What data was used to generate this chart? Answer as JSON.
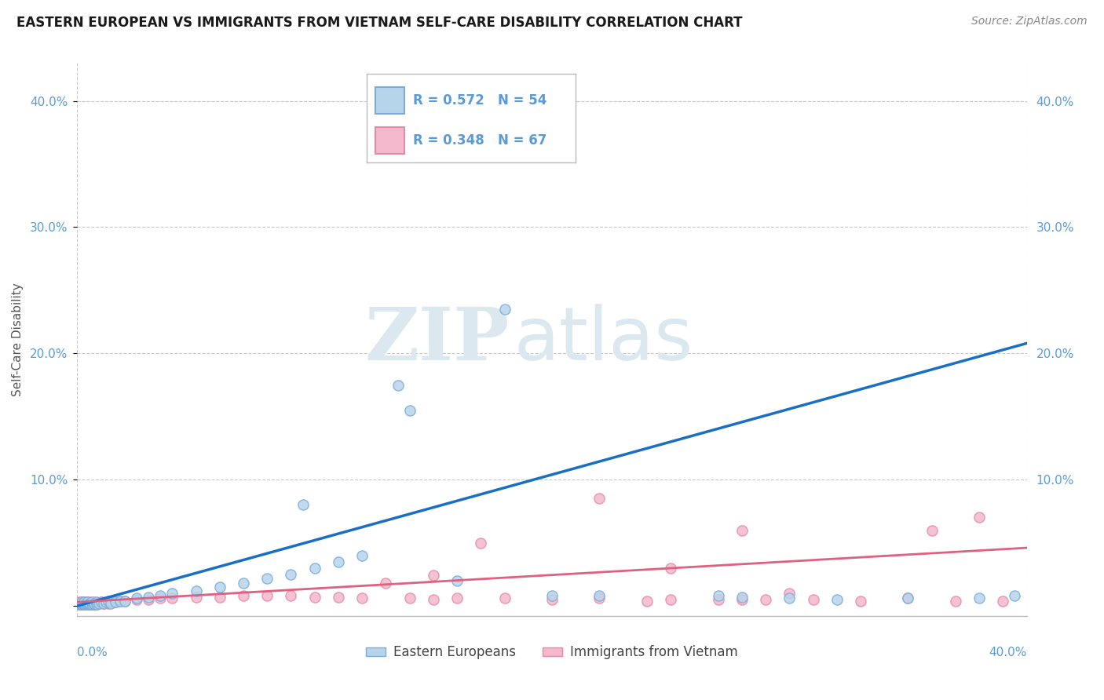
{
  "title": "EASTERN EUROPEAN VS IMMIGRANTS FROM VIETNAM SELF-CARE DISABILITY CORRELATION CHART",
  "source": "Source: ZipAtlas.com",
  "ylabel": "Self-Care Disability",
  "y_ticks": [
    0.0,
    0.1,
    0.2,
    0.3,
    0.4
  ],
  "y_tick_labels": [
    "",
    "10.0%",
    "20.0%",
    "30.0%",
    "40.0%"
  ],
  "xlim": [
    0.0,
    0.4
  ],
  "ylim": [
    -0.008,
    0.43
  ],
  "series1_label": "Eastern Europeans",
  "series2_label": "Immigrants from Vietnam",
  "series1_face": "#b8d4ea",
  "series2_face": "#f4b8cc",
  "series1_edge": "#7aabda",
  "series2_edge": "#e888a8",
  "series1_line": "#1a6fc4",
  "series2_line": "#e06080",
  "background_color": "#ffffff",
  "grid_color": "#c8c8c8",
  "title_color": "#1a1a1a",
  "source_color": "#888888",
  "tick_color": "#5b9bd5",
  "ylabel_color": "#555555",
  "trend1_x": [
    0.0,
    0.4
  ],
  "trend1_y": [
    0.0,
    0.208
  ],
  "trend2_x": [
    0.0,
    0.4
  ],
  "trend2_y": [
    0.003,
    0.046
  ],
  "s1_x": [
    0.001,
    0.001,
    0.002,
    0.002,
    0.002,
    0.003,
    0.003,
    0.003,
    0.004,
    0.004,
    0.004,
    0.005,
    0.005,
    0.006,
    0.006,
    0.007,
    0.007,
    0.008,
    0.008,
    0.009,
    0.01,
    0.011,
    0.012,
    0.013,
    0.014,
    0.016,
    0.018,
    0.02,
    0.025,
    0.03,
    0.035,
    0.04,
    0.05,
    0.06,
    0.07,
    0.08,
    0.09,
    0.1,
    0.11,
    0.12,
    0.14,
    0.16,
    0.18,
    0.2,
    0.22,
    0.27,
    0.28,
    0.3,
    0.32,
    0.35,
    0.38,
    0.395,
    0.135,
    0.095
  ],
  "s1_y": [
    0.001,
    0.002,
    0.001,
    0.002,
    0.003,
    0.001,
    0.002,
    0.003,
    0.001,
    0.002,
    0.003,
    0.001,
    0.002,
    0.001,
    0.003,
    0.001,
    0.002,
    0.001,
    0.003,
    0.002,
    0.003,
    0.002,
    0.003,
    0.004,
    0.002,
    0.003,
    0.004,
    0.004,
    0.006,
    0.007,
    0.008,
    0.01,
    0.012,
    0.015,
    0.018,
    0.022,
    0.025,
    0.03,
    0.035,
    0.04,
    0.155,
    0.02,
    0.235,
    0.008,
    0.008,
    0.008,
    0.007,
    0.006,
    0.005,
    0.006,
    0.006,
    0.008,
    0.175,
    0.08
  ],
  "s2_x": [
    0.001,
    0.001,
    0.001,
    0.002,
    0.002,
    0.002,
    0.003,
    0.003,
    0.003,
    0.004,
    0.004,
    0.004,
    0.005,
    0.005,
    0.005,
    0.006,
    0.006,
    0.007,
    0.007,
    0.008,
    0.008,
    0.009,
    0.01,
    0.011,
    0.012,
    0.013,
    0.014,
    0.016,
    0.018,
    0.02,
    0.025,
    0.03,
    0.035,
    0.04,
    0.05,
    0.06,
    0.07,
    0.08,
    0.09,
    0.1,
    0.11,
    0.12,
    0.14,
    0.16,
    0.18,
    0.2,
    0.22,
    0.25,
    0.27,
    0.29,
    0.31,
    0.33,
    0.35,
    0.37,
    0.39,
    0.15,
    0.13,
    0.28,
    0.24,
    0.3,
    0.36,
    0.38,
    0.22,
    0.17,
    0.15,
    0.28,
    0.25
  ],
  "s2_y": [
    0.001,
    0.002,
    0.003,
    0.001,
    0.002,
    0.003,
    0.001,
    0.002,
    0.003,
    0.001,
    0.002,
    0.003,
    0.001,
    0.002,
    0.003,
    0.001,
    0.002,
    0.001,
    0.003,
    0.001,
    0.002,
    0.002,
    0.003,
    0.002,
    0.003,
    0.002,
    0.003,
    0.003,
    0.004,
    0.004,
    0.005,
    0.005,
    0.006,
    0.006,
    0.007,
    0.007,
    0.008,
    0.008,
    0.008,
    0.007,
    0.007,
    0.006,
    0.006,
    0.006,
    0.006,
    0.005,
    0.006,
    0.005,
    0.005,
    0.005,
    0.005,
    0.004,
    0.006,
    0.004,
    0.004,
    0.005,
    0.018,
    0.005,
    0.004,
    0.01,
    0.06,
    0.07,
    0.085,
    0.05,
    0.024,
    0.06,
    0.03
  ]
}
